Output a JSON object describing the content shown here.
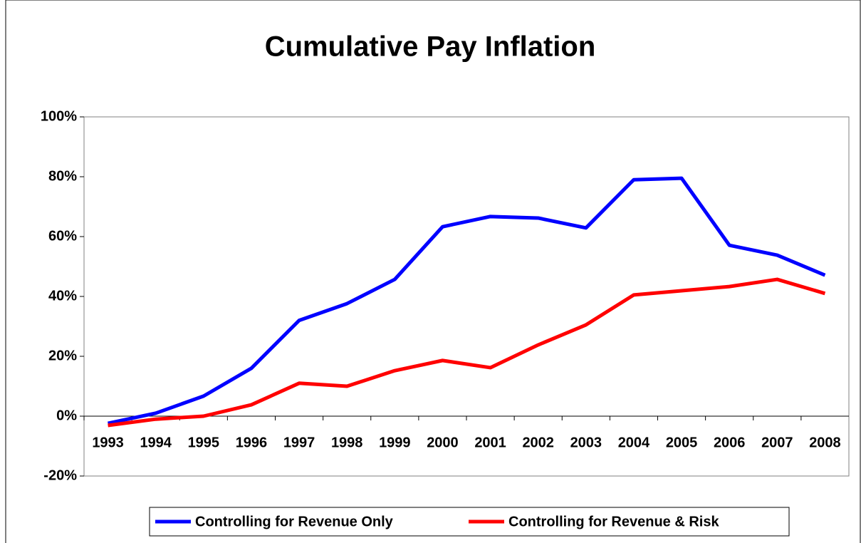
{
  "chart_data": {
    "type": "line",
    "title": "Cumulative Pay Inflation",
    "categories": [
      "1993",
      "1994",
      "1995",
      "1996",
      "1997",
      "1998",
      "1999",
      "2000",
      "2001",
      "2002",
      "2003",
      "2004",
      "2005",
      "2006",
      "2007",
      "2008"
    ],
    "series": [
      {
        "name": "Controlling for Revenue Only",
        "color": "#0000ff",
        "values": [
          -2.4,
          1,
          6.7,
          16,
          32,
          37.6,
          45.7,
          63.3,
          66.7,
          66.2,
          62.9,
          79,
          79.5,
          57.1,
          53.8,
          47.1
        ]
      },
      {
        "name": "Controlling for Revenue & Risk",
        "color": "#ff0000",
        "values": [
          -3.1,
          -1,
          0,
          3.8,
          11,
          10,
          15.2,
          18.6,
          16.2,
          23.8,
          30.5,
          40.5,
          41.9,
          43.3,
          45.7,
          41
        ]
      }
    ],
    "ylim": [
      -20,
      100
    ],
    "yticks": [
      {
        "value": -20,
        "label": "-20%"
      },
      {
        "value": 0,
        "label": "0%"
      },
      {
        "value": 20,
        "label": "20%"
      },
      {
        "value": 40,
        "label": "40%"
      },
      {
        "value": 60,
        "label": "60%"
      },
      {
        "value": 80,
        "label": "80%"
      },
      {
        "value": 100,
        "label": "100%"
      }
    ],
    "legend": "bottom"
  }
}
